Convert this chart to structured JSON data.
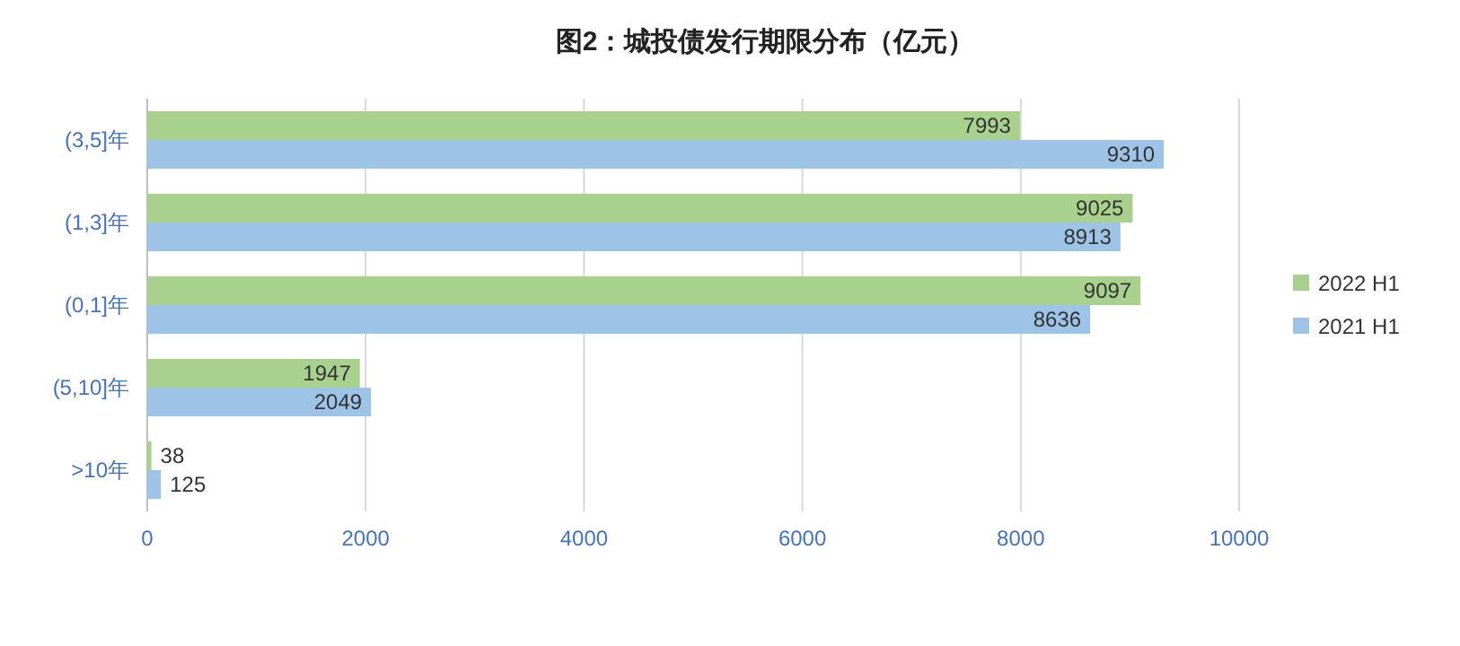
{
  "chart_data": {
    "type": "bar",
    "orientation": "horizontal",
    "title": "图2：城投债发行期限分布（亿元）",
    "categories": [
      "(3,5]年",
      "(1,3]年",
      "(0,1]年",
      "(5,10]年",
      ">10年"
    ],
    "series": [
      {
        "name": "2022 H1",
        "color": "#a9d18e",
        "values": [
          7993,
          9025,
          9097,
          1947,
          38
        ]
      },
      {
        "name": "2021 H1",
        "color": "#9dc3e6",
        "values": [
          9310,
          8913,
          8636,
          2049,
          125
        ]
      }
    ],
    "xlim": [
      0,
      10000
    ],
    "xticks": [
      0,
      2000,
      4000,
      6000,
      8000,
      10000
    ],
    "grid": "x",
    "legend": "right",
    "data_labels": true
  }
}
